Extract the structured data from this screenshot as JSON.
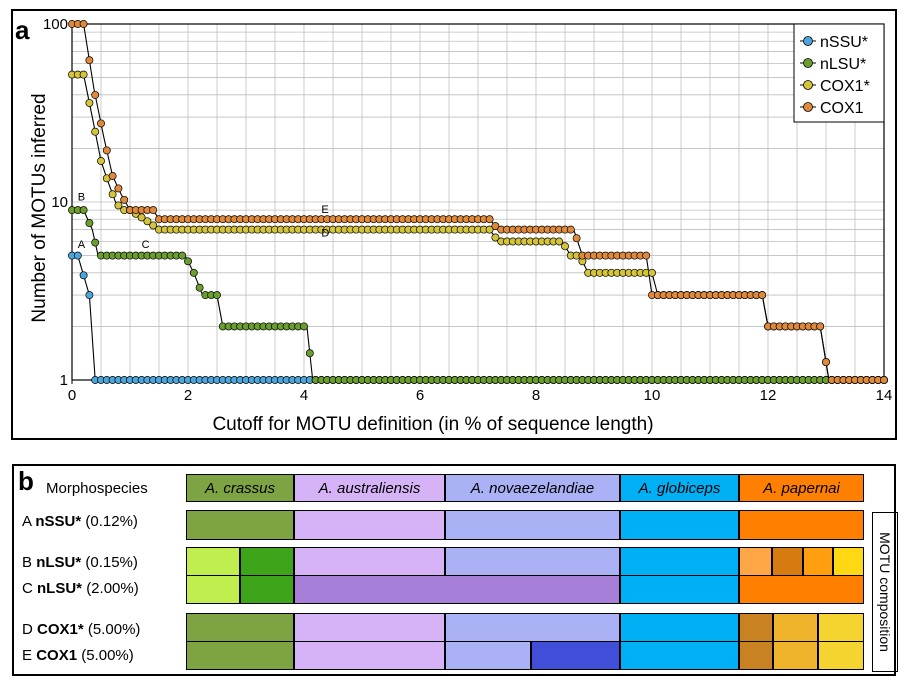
{
  "chart_data": {
    "type": "line",
    "panel_label": "a",
    "xlabel": "Cutoff for MOTU definition (in % of sequence length)",
    "ylabel": "Number of MOTUs inferred",
    "xlim": [
      0,
      14
    ],
    "ylim": [
      1,
      100
    ],
    "y_scale": "log",
    "grid": true,
    "legend_position": "top-right",
    "x_ticks": [
      0,
      2,
      4,
      6,
      8,
      10,
      12,
      14
    ],
    "y_ticks": [
      1,
      10,
      100
    ],
    "annotations": [
      {
        "text": "A",
        "x": 0.1,
        "y": 5.5
      },
      {
        "text": "B",
        "x": 0.1,
        "y": 10.2
      },
      {
        "text": "C",
        "x": 1.2,
        "y": 5.5
      },
      {
        "text": "D",
        "x": 4.3,
        "y": 6.4
      },
      {
        "text": "E",
        "x": 4.3,
        "y": 8.7
      }
    ],
    "series": [
      {
        "name": "nSSU*",
        "color": "#4aa6dd",
        "x": [
          0,
          0.1,
          0.3,
          0.4,
          14
        ],
        "y": [
          5,
          5,
          3,
          1,
          1
        ]
      },
      {
        "name": "nLSU*",
        "color": "#6a9e2d",
        "x": [
          0,
          0.2,
          0.35,
          0.45,
          1.95,
          2.1,
          2.25,
          2.5,
          2.6,
          4.05,
          4.15,
          14
        ],
        "y": [
          9,
          9,
          7,
          5,
          5,
          4,
          3,
          3,
          2,
          2,
          1,
          1
        ]
      },
      {
        "name": "COX1*",
        "color": "#d4c43a",
        "x": [
          0,
          0.2,
          0.35,
          0.5,
          0.62,
          0.75,
          0.87,
          1.0,
          1.25,
          1.5,
          7.2,
          7.35,
          8.45,
          8.6,
          8.75,
          8.9,
          10.0,
          10.1,
          11.9,
          12.0,
          12.9,
          13.05,
          14
        ],
        "y": [
          52,
          52,
          30,
          17,
          13,
          10,
          9,
          9,
          8,
          7,
          7,
          6,
          6,
          5,
          5,
          4,
          4,
          3,
          3,
          2,
          2,
          1,
          1
        ]
      },
      {
        "name": "COX1",
        "color": "#e0893a",
        "x": [
          0,
          0.2,
          0.38,
          0.55,
          0.7,
          0.85,
          1.0,
          1.25,
          1.4,
          1.5,
          7.2,
          7.35,
          8.65,
          8.8,
          9.9,
          10.0,
          11.9,
          12.0,
          12.9,
          13.05,
          14
        ],
        "y": [
          100,
          100,
          43,
          23,
          14,
          11,
          9,
          9,
          9,
          8,
          8,
          7,
          7,
          5,
          5,
          3,
          3,
          2,
          2,
          1,
          1
        ]
      }
    ]
  },
  "panel_b": {
    "panel_label": "b",
    "header_label": "Morphospecies",
    "side_label": "MOTU composition",
    "species": [
      {
        "name": "A. crassus",
        "color": "#7ea342"
      },
      {
        "name": "A. australiensis",
        "color": "#d6b3f7"
      },
      {
        "name": "A. novaezelandiae",
        "color": "#aab1f5"
      },
      {
        "name": "A. globiceps",
        "color": "#00b0f5"
      },
      {
        "name": "A. papernai",
        "color": "#ff7f00"
      }
    ],
    "rows": [
      {
        "letter": "A",
        "marker": "nSSU*",
        "value": "(0.12%)"
      },
      {
        "letter": "B",
        "marker": "nLSU*",
        "value": "(0.15%)"
      },
      {
        "letter": "C",
        "marker": "nLSU*",
        "value": "(2.00%)"
      },
      {
        "letter": "D",
        "marker": "COX1*",
        "value": "(5.00%)"
      },
      {
        "letter": "E",
        "marker": "COX1",
        "value": "(5.00%)"
      }
    ],
    "segment_colors": {
      "lime": "#c0ee4f",
      "green": "#3ea41a",
      "purple": "#a87fd8",
      "blue": "#414fd8",
      "orange_light": "#ffa647",
      "orange_dark": "#d67b10",
      "orange_mid": "#ff9e0f",
      "yellow": "#ffd814",
      "brown": "#c98221",
      "gold": "#efb42b",
      "gold_light": "#f5d430"
    }
  }
}
